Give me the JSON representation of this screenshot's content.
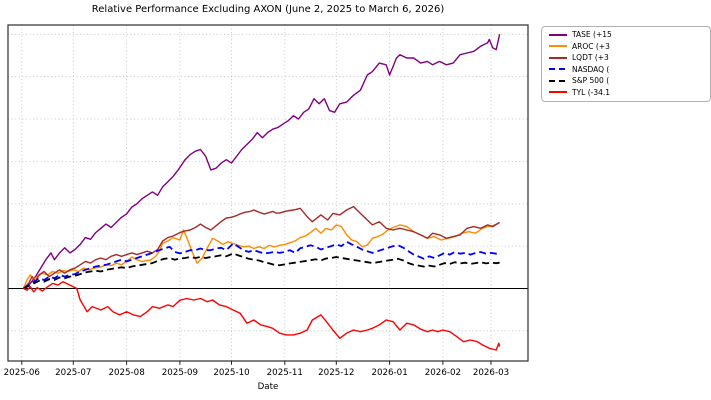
{
  "figure": {
    "title": "Relative Performance Excluding AXON (June 2, 2025 to March 6, 2026)",
    "background": "#ffffff"
  },
  "axes": {
    "xlabel": "Date",
    "x_ticks": [
      {
        "t": 0,
        "label": "2025-06"
      },
      {
        "t": 30,
        "label": "2025-07"
      },
      {
        "t": 61,
        "label": "2025-08"
      },
      {
        "t": 92,
        "label": "2025-09"
      },
      {
        "t": 122,
        "label": "2025-10"
      },
      {
        "t": 153,
        "label": "2025-11"
      },
      {
        "t": 183,
        "label": "2025-12"
      },
      {
        "t": 214,
        "label": "2026-01"
      },
      {
        "t": 245,
        "label": "2026-02"
      },
      {
        "t": 273,
        "label": "2026-03"
      }
    ],
    "xlim": [
      -8,
      294.5
    ],
    "ylim": [
      -42.8,
      155.5
    ],
    "y_gridlines": [
      -25,
      25,
      50,
      75,
      100,
      125,
      150
    ],
    "zero_line": 0,
    "grid_color": "#bbbbbb",
    "spine_color": "#3d3d3d",
    "tick_color": "#222222"
  },
  "legend": {
    "clipped_at_image_edge": true,
    "entries": [
      {
        "label": "TASE (+15",
        "color": "#800080",
        "dash": false
      },
      {
        "label": "AROC (+3",
        "color": "#ff8c00",
        "dash": false
      },
      {
        "label": "LQDT (+3",
        "color": "#a52a2a",
        "dash": false
      },
      {
        "label": "NASDAQ (",
        "color": "#0000ff",
        "dash": true
      },
      {
        "label": "S&P 500 (",
        "color": "#000000",
        "dash": true
      },
      {
        "label": "TYL (-34.1",
        "color": "#ff0000",
        "dash": false
      }
    ]
  },
  "chart_data": {
    "type": "line",
    "title": "Relative Performance Excluding AXON (June 2, 2025 to March 6, 2026)",
    "xlabel": "Date",
    "ylabel": "",
    "x_unit": "days since 2025-06-01",
    "y_unit": "percent return",
    "grid": true,
    "legend_position": "outside-right",
    "series": [
      {
        "id": "tase",
        "name": "TASE",
        "color": "#800080",
        "dash": false,
        "width": 1.4,
        "t": [
          1,
          5,
          8,
          11,
          14,
          17,
          19,
          22,
          25,
          28,
          31,
          34,
          37,
          40,
          43,
          46,
          49,
          52,
          55,
          58,
          61,
          64,
          67,
          70,
          73,
          76,
          79,
          82,
          85,
          88,
          91,
          95,
          98,
          101,
          104,
          107,
          110,
          113,
          116,
          119,
          122,
          125,
          128,
          131,
          134,
          137,
          140,
          143,
          146,
          149,
          152,
          155,
          158,
          161,
          164,
          167,
          170,
          173,
          176,
          179,
          182,
          185,
          189,
          193,
          197,
          201,
          204,
          208,
          212,
          214,
          218,
          220,
          224,
          228,
          232,
          236,
          239,
          243,
          247,
          251,
          255,
          259,
          263,
          267,
          271,
          272,
          274,
          276,
          278
        ],
        "v": [
          0,
          3,
          7,
          12,
          17,
          21,
          17,
          21,
          24,
          21,
          23,
          26,
          30,
          29,
          33,
          35.5,
          38,
          36,
          39,
          42,
          44,
          48,
          50,
          53,
          55,
          57,
          55,
          60,
          63,
          66,
          70,
          76,
          79,
          81,
          82,
          78,
          70,
          71,
          74,
          76,
          74,
          78,
          82,
          85,
          88,
          92,
          89,
          92,
          94,
          95,
          97,
          99,
          102,
          100,
          104,
          106,
          112,
          109,
          112,
          105,
          104,
          109,
          110,
          114,
          117,
          126,
          128,
          133,
          132,
          126,
          136,
          138,
          136,
          136,
          133,
          134,
          132,
          134,
          132,
          133,
          138,
          139,
          140,
          143,
          145,
          147,
          142,
          141,
          150
        ]
      },
      {
        "id": "aroc",
        "name": "AROC",
        "color": "#ff8c00",
        "dash": false,
        "width": 1.4,
        "t": [
          1,
          3,
          5,
          7,
          9,
          12,
          15,
          18,
          21,
          24,
          27,
          30,
          33,
          36,
          39,
          42,
          46,
          49,
          52,
          55,
          58,
          61,
          64,
          67,
          70,
          75,
          78,
          80,
          82,
          85,
          88,
          92,
          94,
          96,
          99,
          102,
          105,
          108,
          111,
          114,
          117,
          120,
          123,
          126,
          129,
          132,
          135,
          138,
          141,
          144,
          147,
          150,
          153,
          156,
          159,
          162,
          165,
          168,
          171,
          174,
          177,
          180,
          183,
          186,
          189,
          192,
          195,
          198,
          201,
          204,
          207,
          210,
          213,
          216,
          220,
          224,
          228,
          232,
          236,
          240,
          244,
          248,
          252,
          256,
          260,
          264,
          268,
          271,
          274,
          278
        ],
        "v": [
          0,
          5,
          8,
          5.5,
          7,
          9,
          8,
          10,
          9,
          10.5,
          10,
          11,
          10,
          12,
          11,
          12,
          12.7,
          14,
          13.5,
          15,
          14,
          16,
          18.6,
          17,
          16,
          16.8,
          19,
          22,
          26.8,
          28,
          30,
          28.6,
          34.5,
          30,
          22,
          15,
          18,
          24,
          29.6,
          28,
          26,
          27.6,
          26.5,
          25.5,
          24.6,
          25,
          23.6,
          24.6,
          23.6,
          25.5,
          24.5,
          25.5,
          26,
          27,
          28,
          30,
          31,
          33,
          35.5,
          32.6,
          35.5,
          34.5,
          37.5,
          36.5,
          31.6,
          28.6,
          27.6,
          24.6,
          25.6,
          29.6,
          30.6,
          32,
          34.5,
          36,
          37.5,
          36.5,
          33.5,
          31.6,
          29.6,
          30.6,
          28.6,
          29.6,
          30.6,
          32.6,
          33.5,
          32.6,
          35.5,
          36.5,
          37,
          38.8
        ]
      },
      {
        "id": "lqdt",
        "name": "LQDT",
        "color": "#a52a2a",
        "dash": false,
        "width": 1.4,
        "t": [
          1,
          4,
          6,
          8,
          10,
          13,
          16,
          19,
          22,
          25,
          28,
          31,
          34,
          37,
          40,
          43,
          46,
          49,
          52,
          55,
          58,
          61,
          64,
          67,
          70,
          73,
          76,
          79,
          82,
          85,
          88,
          92,
          95,
          98,
          101,
          104,
          107,
          110,
          113,
          116,
          119,
          122,
          125,
          127,
          130,
          133,
          135,
          138,
          141,
          143,
          146,
          148,
          150,
          153,
          156,
          159,
          162,
          166,
          169,
          174,
          178,
          181,
          185,
          189,
          193,
          197,
          201,
          204,
          208,
          212,
          216,
          220,
          224,
          228,
          232,
          236,
          239,
          243,
          247,
          251,
          255,
          259,
          263,
          267,
          271,
          274,
          278
        ],
        "v": [
          0,
          3,
          7,
          4,
          8,
          10,
          7,
          9,
          11,
          9,
          11,
          12,
          14,
          16,
          15,
          17,
          18,
          17,
          19,
          20,
          19,
          20,
          21,
          20,
          21,
          22,
          21,
          23,
          28,
          30,
          31,
          33,
          34,
          34.5,
          36,
          38,
          36,
          34.5,
          37,
          39.5,
          41.6,
          42,
          43,
          44,
          45,
          45.5,
          46.3,
          45,
          44,
          44.5,
          45.5,
          44.5,
          44.5,
          45.5,
          46,
          46.5,
          47.3,
          42.4,
          39.4,
          43.4,
          40.4,
          44.3,
          43.4,
          46.3,
          48.3,
          44.3,
          40.4,
          37.5,
          39.4,
          35.5,
          34.5,
          35.5,
          34.5,
          33.5,
          31.6,
          29.6,
          32.6,
          31.6,
          29.6,
          30.6,
          31.6,
          35.5,
          36.5,
          35.5,
          37.5,
          36.5,
          39
        ]
      },
      {
        "id": "nasdaq",
        "name": "NASDAQ",
        "color": "#0000ff",
        "dash": true,
        "width": 1.8,
        "t": [
          1,
          4,
          7,
          10,
          13,
          16,
          19,
          22,
          25,
          28,
          31,
          34,
          37,
          40,
          43,
          46,
          49,
          52,
          55,
          58,
          61,
          64,
          67,
          70,
          73,
          76,
          80,
          83,
          86,
          89,
          92,
          95,
          98,
          101,
          104,
          107,
          110,
          113,
          116,
          119,
          123,
          126,
          129,
          132,
          135,
          138,
          141,
          144,
          147,
          150,
          153,
          156,
          159,
          162,
          165,
          168,
          171,
          174,
          177,
          180,
          183,
          186,
          189,
          192,
          195,
          198,
          201,
          204,
          207,
          210,
          213,
          216,
          219,
          222,
          225,
          228,
          231,
          234,
          237,
          240,
          243,
          246,
          249,
          252,
          255,
          258,
          261,
          264,
          267,
          270,
          273,
          276,
          278
        ],
        "v": [
          0,
          2,
          4,
          6,
          5,
          7,
          6,
          8,
          7,
          8,
          8.5,
          10,
          11,
          12,
          13,
          13.5,
          14,
          15,
          16,
          17,
          16,
          17,
          18,
          19,
          20,
          21,
          22.6,
          23.6,
          24.6,
          21.6,
          20.7,
          21.6,
          22.6,
          22.6,
          23.6,
          22.6,
          22.6,
          23.6,
          24,
          22.6,
          26.6,
          24.6,
          22.6,
          21.6,
          22.6,
          21.6,
          20.7,
          21,
          21.6,
          21,
          21.6,
          22.6,
          21,
          23.7,
          24.6,
          25.5,
          24.6,
          23,
          24,
          25,
          26,
          25,
          27.6,
          26,
          24.6,
          23,
          22,
          21,
          22,
          23,
          24,
          25,
          25.5,
          24,
          22,
          20,
          18.8,
          17.5,
          19,
          18,
          19.5,
          21,
          20,
          21.5,
          20.5,
          21,
          20,
          21,
          21.5,
          20.5,
          21,
          20.5,
          20.8
        ]
      },
      {
        "id": "sp500",
        "name": "S&P 500",
        "color": "#000000",
        "dash": true,
        "width": 1.8,
        "t": [
          1,
          4,
          7,
          10,
          13,
          16,
          19,
          22,
          25,
          28,
          31,
          34,
          37,
          40,
          43,
          46,
          49,
          52,
          55,
          58,
          61,
          64,
          67,
          70,
          73,
          76,
          80,
          83,
          86,
          89,
          92,
          95,
          98,
          101,
          104,
          107,
          110,
          113,
          116,
          119,
          123,
          126,
          129,
          132,
          135,
          138,
          141,
          144,
          147,
          150,
          153,
          156,
          159,
          162,
          165,
          168,
          171,
          174,
          177,
          180,
          183,
          186,
          189,
          192,
          195,
          198,
          201,
          204,
          207,
          210,
          213,
          216,
          219,
          222,
          225,
          228,
          231,
          234,
          237,
          240,
          243,
          246,
          249,
          252,
          255,
          258,
          261,
          264,
          267,
          270,
          273,
          276,
          278
        ],
        "v": [
          0,
          1.5,
          3,
          4.5,
          4,
          5.5,
          5,
          6.5,
          6,
          7,
          7.5,
          8.5,
          9.5,
          10,
          10.5,
          10,
          11,
          11.5,
          12,
          12.5,
          12,
          13,
          13.5,
          14,
          14.5,
          15,
          16.7,
          17.5,
          18,
          17,
          17.7,
          18,
          18.6,
          18,
          18.6,
          18,
          18.6,
          19,
          19.6,
          19,
          20.7,
          19.5,
          18.5,
          17.5,
          17,
          16.5,
          15.5,
          14.8,
          14,
          13.7,
          14.2,
          14.8,
          15.2,
          15.7,
          16.2,
          16.7,
          17.2,
          16.5,
          17.7,
          18,
          18.6,
          18,
          17.5,
          17,
          16.5,
          16,
          15.5,
          15,
          15.5,
          16,
          16.5,
          17,
          17.5,
          16.5,
          15,
          14,
          13.5,
          12.9,
          13.5,
          13,
          14,
          15,
          14.5,
          15.5,
          14.8,
          15.2,
          14.5,
          15,
          15.5,
          14.8,
          15.2,
          14.9,
          15.2
        ]
      },
      {
        "id": "tyl",
        "name": "TYL",
        "color": "#ff0000",
        "dash": false,
        "width": 1.4,
        "t": [
          1,
          3,
          5,
          7,
          9,
          12,
          15,
          18,
          21,
          24,
          27,
          30,
          32,
          34,
          38,
          41,
          46,
          50,
          53,
          57,
          61,
          65,
          69,
          73,
          76,
          80,
          85,
          88,
          92,
          96,
          100,
          104,
          108,
          111,
          115,
          119,
          123,
          127,
          131,
          135,
          139,
          143,
          146,
          150,
          154,
          158,
          162,
          166,
          169,
          174,
          178,
          181,
          185,
          189,
          193,
          197,
          201,
          204,
          208,
          212,
          216,
          220,
          224,
          228,
          232,
          236,
          239,
          242,
          245,
          249,
          253,
          257,
          261,
          265,
          268,
          272,
          276,
          277.5,
          278
        ],
        "v": [
          0,
          -1,
          1,
          -2,
          0.5,
          -1.5,
          1,
          3,
          2,
          4,
          2.5,
          1,
          0,
          -6.8,
          -13.7,
          -10.7,
          -12.7,
          -10.7,
          -13.7,
          -15.6,
          -13.7,
          -15.6,
          -16.6,
          -13.7,
          -10.7,
          -11.7,
          -9.7,
          -10.7,
          -7,
          -5.9,
          -6.8,
          -5.9,
          -7.8,
          -6.8,
          -9.7,
          -10.7,
          -12.7,
          -14.6,
          -20.5,
          -18.6,
          -21.5,
          -22.5,
          -23.5,
          -26.4,
          -27.4,
          -27.4,
          -26.4,
          -24.5,
          -18.6,
          -15.6,
          -20.5,
          -24.5,
          -29.4,
          -26.4,
          -24.5,
          -25.5,
          -24.5,
          -23.5,
          -21.5,
          -18.6,
          -19.6,
          -24.5,
          -20.5,
          -21.5,
          -24,
          -25.5,
          -24.5,
          -25.5,
          -24.5,
          -25.5,
          -28.4,
          -31.4,
          -30.4,
          -31.4,
          -33.3,
          -35.3,
          -36.3,
          -32.3,
          -34.3
        ]
      }
    ]
  }
}
